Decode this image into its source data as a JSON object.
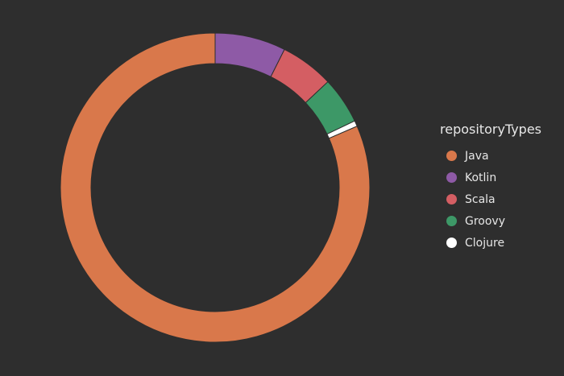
{
  "chart_data": {
    "type": "pie",
    "legend_title": "repositoryTypes",
    "legend_position": "right",
    "categories": [
      "Java",
      "Kotlin",
      "Scala",
      "Groovy",
      "Clojure"
    ],
    "values": [
      81.5,
      7.4,
      5.6,
      4.9,
      0.6
    ],
    "colors": [
      "#d9784b",
      "#8e5aa6",
      "#d45e63",
      "#3d9867",
      "#ffffff"
    ],
    "style": "donut"
  }
}
